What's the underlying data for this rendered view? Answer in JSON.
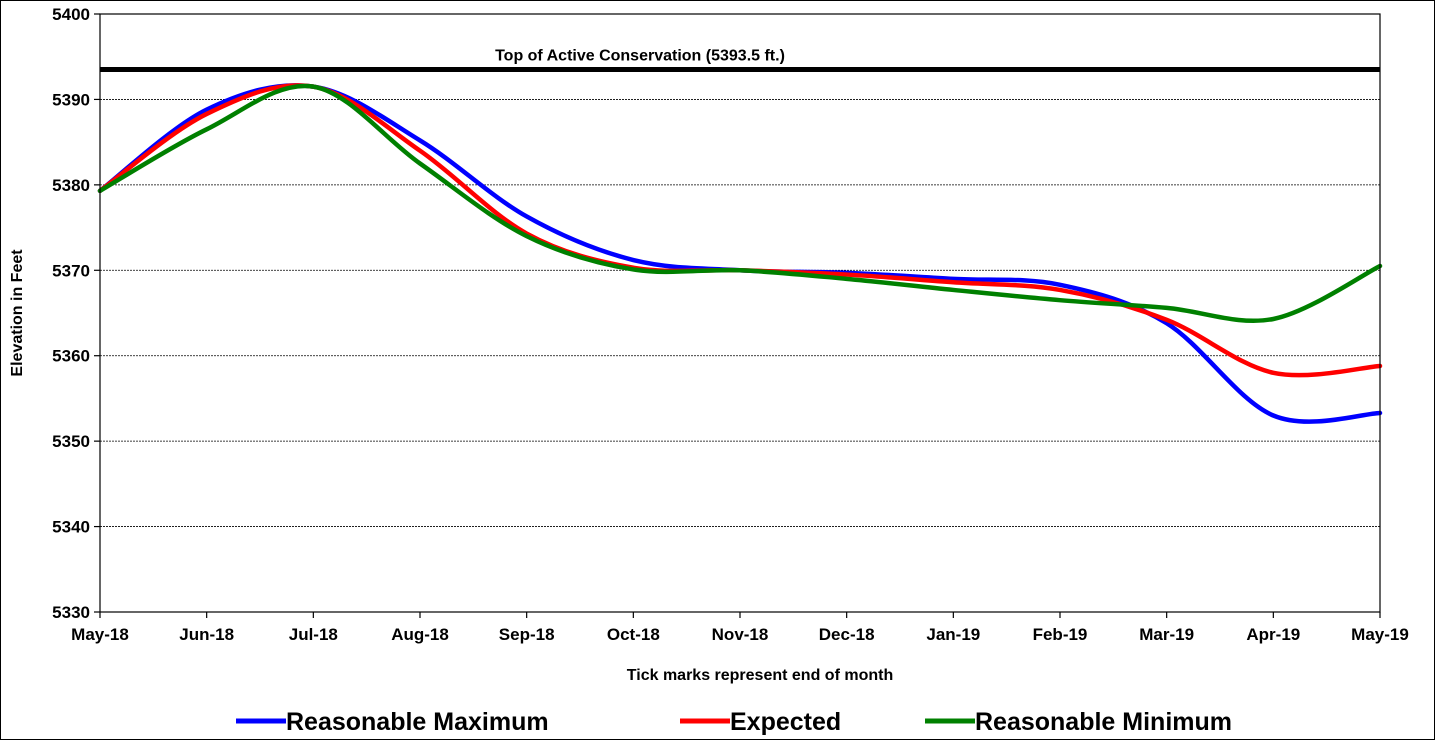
{
  "chart_data": {
    "type": "line",
    "title": "",
    "xlabel": "Tick marks represent end of month",
    "ylabel": "Elevation in Feet",
    "ylim": [
      5330,
      5400
    ],
    "yticks": [
      5330,
      5340,
      5350,
      5360,
      5370,
      5380,
      5390,
      5400
    ],
    "grid": true,
    "legend_position": "bottom",
    "categories": [
      "May-18",
      "Jun-18",
      "Jul-18",
      "Aug-18",
      "Sep-18",
      "Oct-18",
      "Nov-18",
      "Dec-18",
      "Jan-19",
      "Feb-19",
      "Mar-19",
      "Apr-19",
      "May-19"
    ],
    "series": [
      {
        "name": "Reasonable Maximum",
        "color": "#0000ff",
        "values": [
          5379.3,
          5388.8,
          5391.5,
          5385.2,
          5376.3,
          5371.2,
          5370.0,
          5369.7,
          5369.0,
          5368.3,
          5363.8,
          5353.0,
          5353.3
        ]
      },
      {
        "name": "Expected",
        "color": "#ff0000",
        "values": [
          5379.3,
          5388.3,
          5391.5,
          5384.0,
          5374.3,
          5370.3,
          5370.0,
          5369.5,
          5368.6,
          5367.7,
          5364.2,
          5358.0,
          5358.8
        ]
      },
      {
        "name": "Reasonable Minimum",
        "color": "#008000",
        "values": [
          5379.3,
          5386.5,
          5391.5,
          5382.5,
          5374.0,
          5370.1,
          5370.0,
          5369.0,
          5367.7,
          5366.5,
          5365.6,
          5364.3,
          5370.5
        ]
      }
    ],
    "reference_line": {
      "label": "Top of Active Conservation (5393.5 ft.)",
      "value": 5393.5,
      "color": "#000000"
    }
  }
}
